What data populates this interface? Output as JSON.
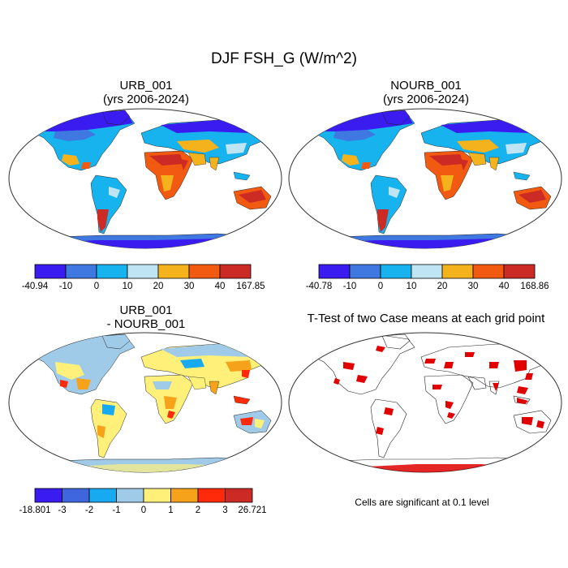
{
  "figure_title": "DJF FSH_G (W/m^2)",
  "significance_note": "Cells are significant at 0.1 level",
  "chart_data": [
    {
      "type": "heatmap",
      "panel": "top-left",
      "title_line1": "URB_001",
      "title_line2": "(yrs 2006-2024)",
      "variable": "FSH_G",
      "units": "W/m^2",
      "colorbar": {
        "labels": [
          "-40.94",
          "-10",
          "0",
          "10",
          "20",
          "30",
          "40",
          "167.85"
        ],
        "colors": [
          "#3a1cf0",
          "#3f78e0",
          "#17b3ee",
          "#bfe5f4",
          "#f4b21d",
          "#f25a12",
          "#cc2a24"
        ]
      }
    },
    {
      "type": "heatmap",
      "panel": "top-right",
      "title_line1": "NOURB_001",
      "title_line2": "(yrs 2006-2024)",
      "variable": "FSH_G",
      "units": "W/m^2",
      "colorbar": {
        "labels": [
          "-40.78",
          "-10",
          "0",
          "10",
          "20",
          "30",
          "40",
          "168.86"
        ],
        "colors": [
          "#3a1cf0",
          "#3f78e0",
          "#17b3ee",
          "#bfe5f4",
          "#f4b21d",
          "#f25a12",
          "#cc2a24"
        ]
      }
    },
    {
      "type": "heatmap",
      "panel": "bottom-left",
      "title_line1": "URB_001",
      "title_line2": "- NOURB_001",
      "variable": "FSH_G difference",
      "units": "W/m^2",
      "colorbar": {
        "labels": [
          "-18.801",
          "-3",
          "-2",
          "-1",
          "0",
          "1",
          "2",
          "3",
          "26.721"
        ],
        "colors": [
          "#3a1cf0",
          "#3f66dc",
          "#17aaf0",
          "#9fcbe8",
          "#fff07a",
          "#f6a21a",
          "#ff2a0a",
          "#cc2a24"
        ]
      }
    },
    {
      "type": "heatmap",
      "panel": "bottom-right",
      "title_line1": "T-Test of two Case means at each grid point",
      "significance_level": 0.1,
      "significant_color": "#e00000"
    }
  ]
}
